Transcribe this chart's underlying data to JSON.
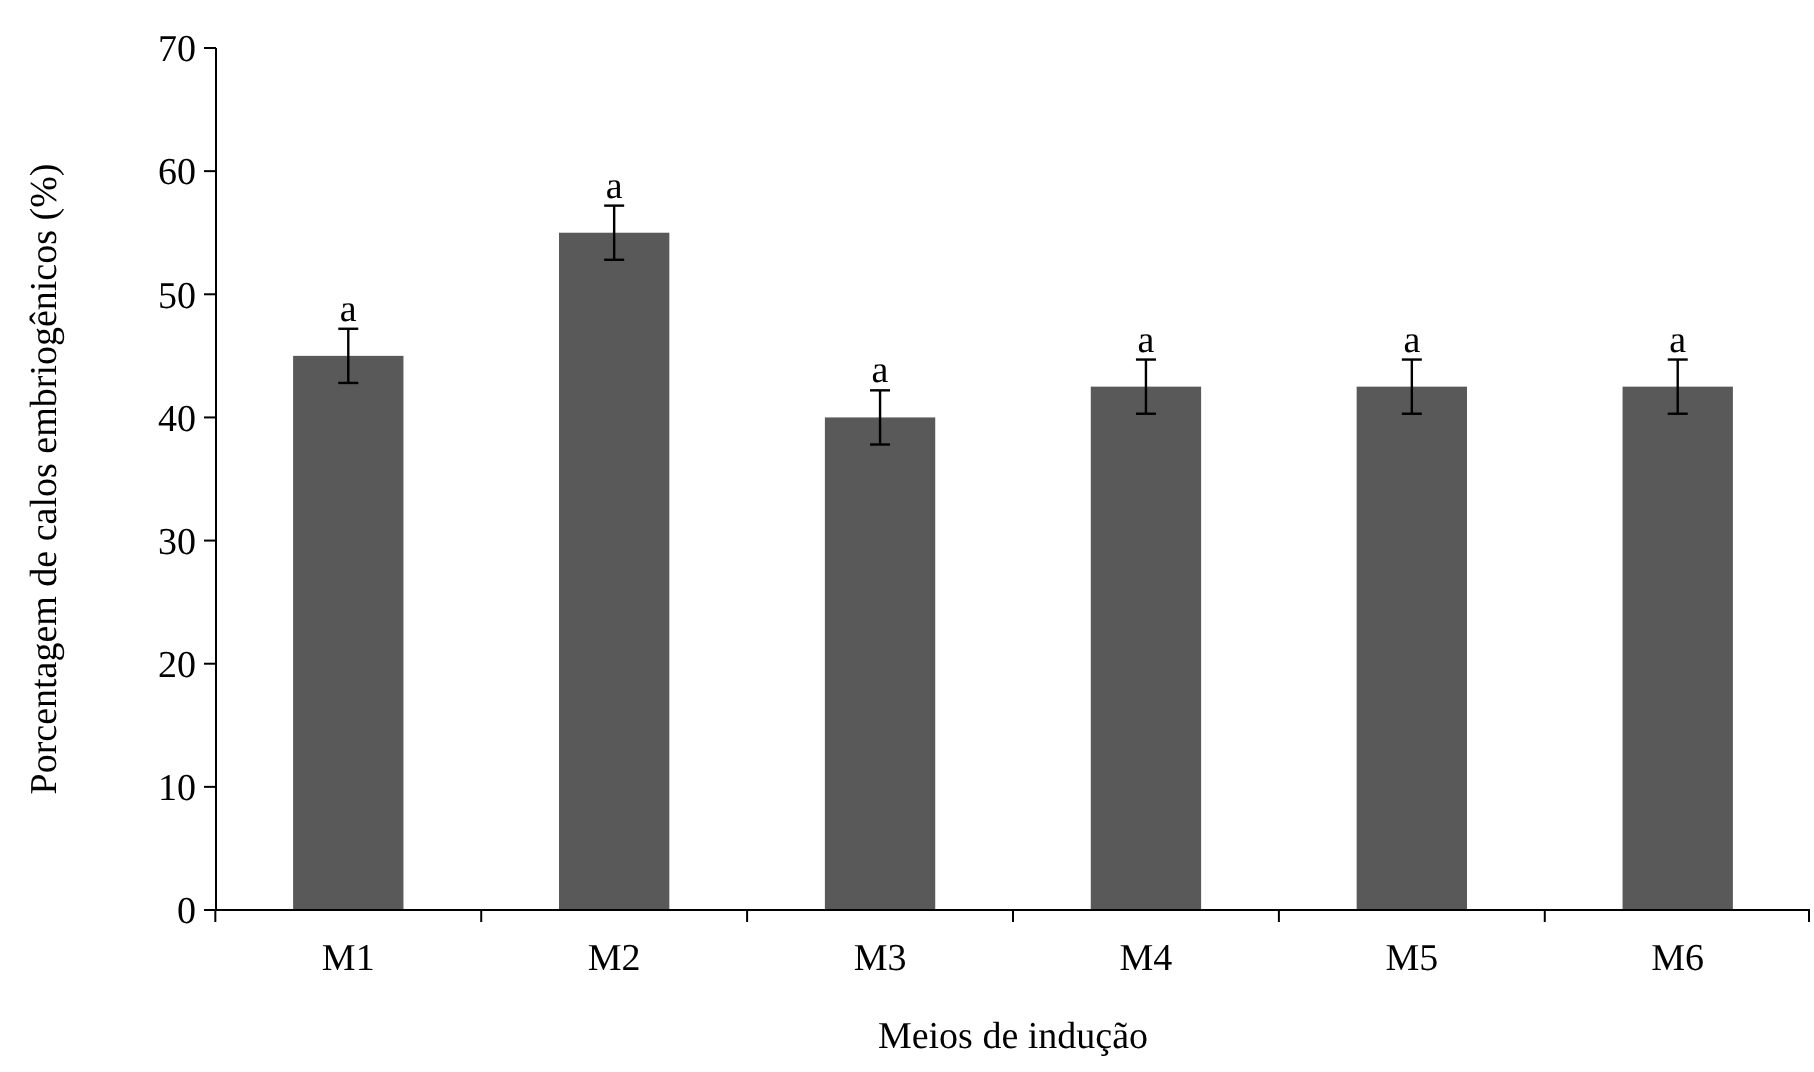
{
  "chart_data": {
    "type": "bar",
    "xlabel": "Meios de indução",
    "ylabel": "Porcentagem de calos embriogênicos (%)",
    "categories": [
      "M1",
      "M2",
      "M3",
      "M4",
      "M5",
      "M6"
    ],
    "values": [
      45,
      55,
      40,
      42.5,
      42.5,
      42.5
    ],
    "errors": [
      2.2,
      2.2,
      2.2,
      2.2,
      2.2,
      2.2
    ],
    "color": "#595959",
    "ylim": [
      0,
      70
    ],
    "yticks": [
      0,
      10,
      20,
      30,
      40,
      50,
      60,
      70
    ],
    "grid": false,
    "annotations": [
      {
        "text": "a",
        "x": "M1",
        "y": 47.2
      },
      {
        "text": "a",
        "x": "M2",
        "y": 57.2
      },
      {
        "text": "a",
        "x": "M3",
        "y": 42.2
      },
      {
        "text": "a",
        "x": "M4",
        "y": 44.7
      },
      {
        "text": "a",
        "x": "M5",
        "y": 44.7
      },
      {
        "text": "a",
        "x": "M6",
        "y": 44.7
      }
    ]
  }
}
